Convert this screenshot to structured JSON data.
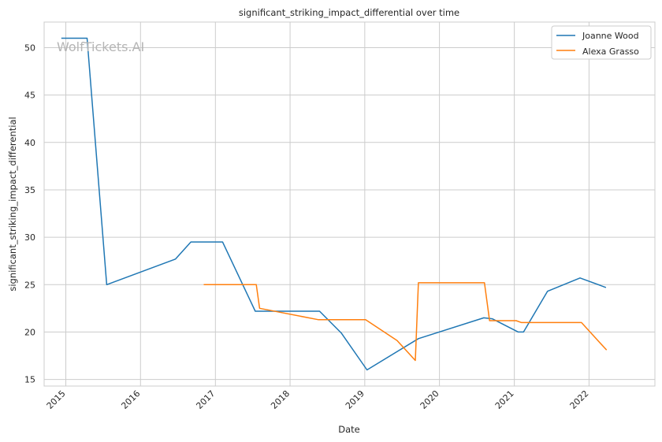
{
  "chart_data": {
    "type": "line",
    "title": "significant_striking_impact_differential over time",
    "xlabel": "Date",
    "ylabel": "significant_striking_impact_differential",
    "watermark": "WolfTickets.AI",
    "x_ticks": [
      "2015",
      "2016",
      "2017",
      "2018",
      "2019",
      "2020",
      "2021",
      "2022"
    ],
    "y_ticks": [
      15,
      20,
      25,
      30,
      35,
      40,
      45,
      50
    ],
    "xlim": [
      "2014-09-17",
      "2022-11-19"
    ],
    "ylim": [
      14.3,
      52.7
    ],
    "grid": true,
    "legend_position": "top-right",
    "series": [
      {
        "name": "Joanne Wood",
        "color": "#1f77b4",
        "points": [
          [
            "2014-12-10",
            51.0
          ],
          [
            "2015-04-15",
            51.0
          ],
          [
            "2015-07-20",
            25.0
          ],
          [
            "2016-06-20",
            27.7
          ],
          [
            "2016-09-03",
            29.5
          ],
          [
            "2017-02-05",
            29.5
          ],
          [
            "2017-07-15",
            22.2
          ],
          [
            "2018-05-25",
            22.2
          ],
          [
            "2018-09-08",
            19.9
          ],
          [
            "2019-01-12",
            16.0
          ],
          [
            "2019-09-20",
            19.3
          ],
          [
            "2020-08-05",
            21.5
          ],
          [
            "2020-09-15",
            21.4
          ],
          [
            "2021-01-20",
            20.0
          ],
          [
            "2021-02-15",
            20.0
          ],
          [
            "2021-06-12",
            24.3
          ],
          [
            "2021-11-18",
            25.7
          ],
          [
            "2022-03-25",
            24.7
          ]
        ]
      },
      {
        "name": "Alexa Grasso",
        "color": "#ff7f0e",
        "points": [
          [
            "2016-11-05",
            25.0
          ],
          [
            "2017-07-20",
            25.0
          ],
          [
            "2017-08-05",
            22.5
          ],
          [
            "2018-05-20",
            21.3
          ],
          [
            "2019-01-05",
            21.3
          ],
          [
            "2019-06-08",
            19.1
          ],
          [
            "2019-09-05",
            17.0
          ],
          [
            "2019-09-20",
            25.2
          ],
          [
            "2020-08-08",
            25.2
          ],
          [
            "2020-09-02",
            21.2
          ],
          [
            "2021-01-10",
            21.2
          ],
          [
            "2021-02-05",
            21.0
          ],
          [
            "2021-11-25",
            21.0
          ],
          [
            "2022-03-28",
            18.1
          ]
        ]
      }
    ]
  }
}
